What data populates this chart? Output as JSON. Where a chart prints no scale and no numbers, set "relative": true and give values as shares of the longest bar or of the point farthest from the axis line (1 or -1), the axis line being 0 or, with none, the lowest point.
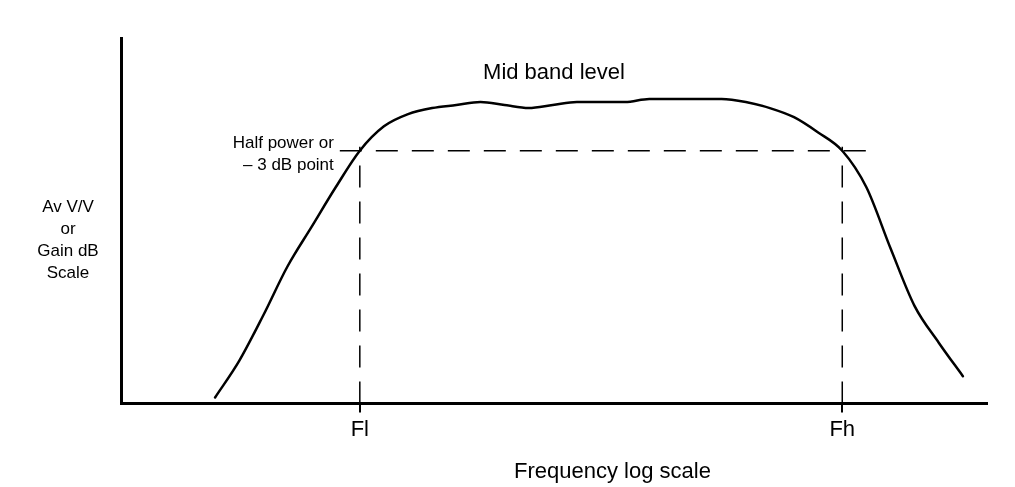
{
  "chart_data": {
    "type": "line",
    "relative": true,
    "xlabel": "Frequency log scale",
    "categories": [
      null,
      null,
      null,
      null,
      null,
      null,
      "Fl",
      null,
      null,
      null,
      null,
      null,
      null,
      null,
      null,
      null,
      null,
      null,
      null,
      null,
      null,
      null,
      null,
      null,
      null,
      null,
      "Fh",
      null,
      null,
      null,
      null,
      null
    ],
    "series": [
      {
        "color": "#000000",
        "values": [
          0.02,
          0.14,
          0.29,
          0.45,
          0.58,
          0.71,
          0.83,
          0.91,
          0.95,
          0.97,
          0.98,
          0.99,
          0.98,
          0.97,
          0.98,
          0.99,
          0.99,
          0.99,
          1,
          1,
          1,
          1,
          0.99,
          0.97,
          0.94,
          0.89,
          0.83,
          0.71,
          0.51,
          0.32,
          0.2,
          0.09
        ]
      }
    ],
    "ref_lines": [
      {
        "axis": "y",
        "value": 0.83,
        "label": "Half power or\n– 3 dB point",
        "line_style": "dashed"
      },
      {
        "axis": "x",
        "value": "Fl",
        "label": null,
        "line_style": "dashed"
      },
      {
        "axis": "x",
        "value": "Fh",
        "label": null,
        "line_style": "dashed"
      }
    ],
    "annotations": [
      "Mid band level",
      "Av V/V\nor\nGain dB\nScale"
    ],
    "grid": false,
    "legend": false,
    "marker": "none",
    "line_style": "solid"
  }
}
